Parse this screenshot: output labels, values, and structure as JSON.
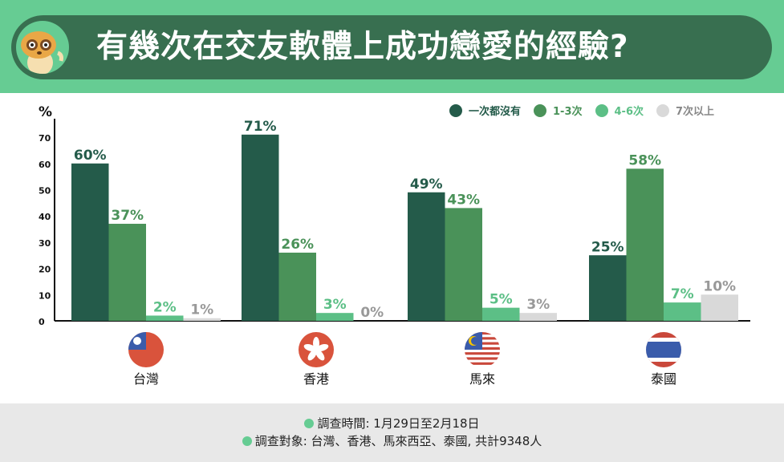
{
  "title": "有幾次在交友軟體上成功戀愛的經驗?",
  "colors": {
    "header_bg": "#66cc93",
    "banner": "#386f50",
    "series": [
      "#245b4a",
      "#4a9259",
      "#5cbf86",
      "#d9d9d9"
    ],
    "label_colors": [
      "#245b4a",
      "#4a9259",
      "#5cbf86",
      "#999999"
    ]
  },
  "chart_data": {
    "type": "bar",
    "ylabel": "%",
    "ylim": [
      0,
      75
    ],
    "yticks": [
      0,
      10,
      20,
      30,
      40,
      50,
      60,
      70
    ],
    "grid": false,
    "legend_placement": "top-right",
    "categories": [
      "台灣",
      "香港",
      "馬來",
      "泰國"
    ],
    "category_flags": [
      "taiwan-flag",
      "hong-kong-flag",
      "malaysia-flag",
      "thailand-flag"
    ],
    "series": [
      {
        "name": "一次都沒有",
        "values": [
          60,
          71,
          49,
          25
        ]
      },
      {
        "name": "1-3次",
        "values": [
          37,
          26,
          43,
          58
        ]
      },
      {
        "name": "4-6次",
        "values": [
          2,
          3,
          5,
          7
        ]
      },
      {
        "name": "7次以上",
        "values": [
          1,
          0,
          3,
          10
        ]
      }
    ]
  },
  "footer": {
    "line1": "調查時間: 1月29日至2月18日",
    "line2": "調查對象: 台灣、香港、馬來西亞、泰國, 共計9348人"
  }
}
